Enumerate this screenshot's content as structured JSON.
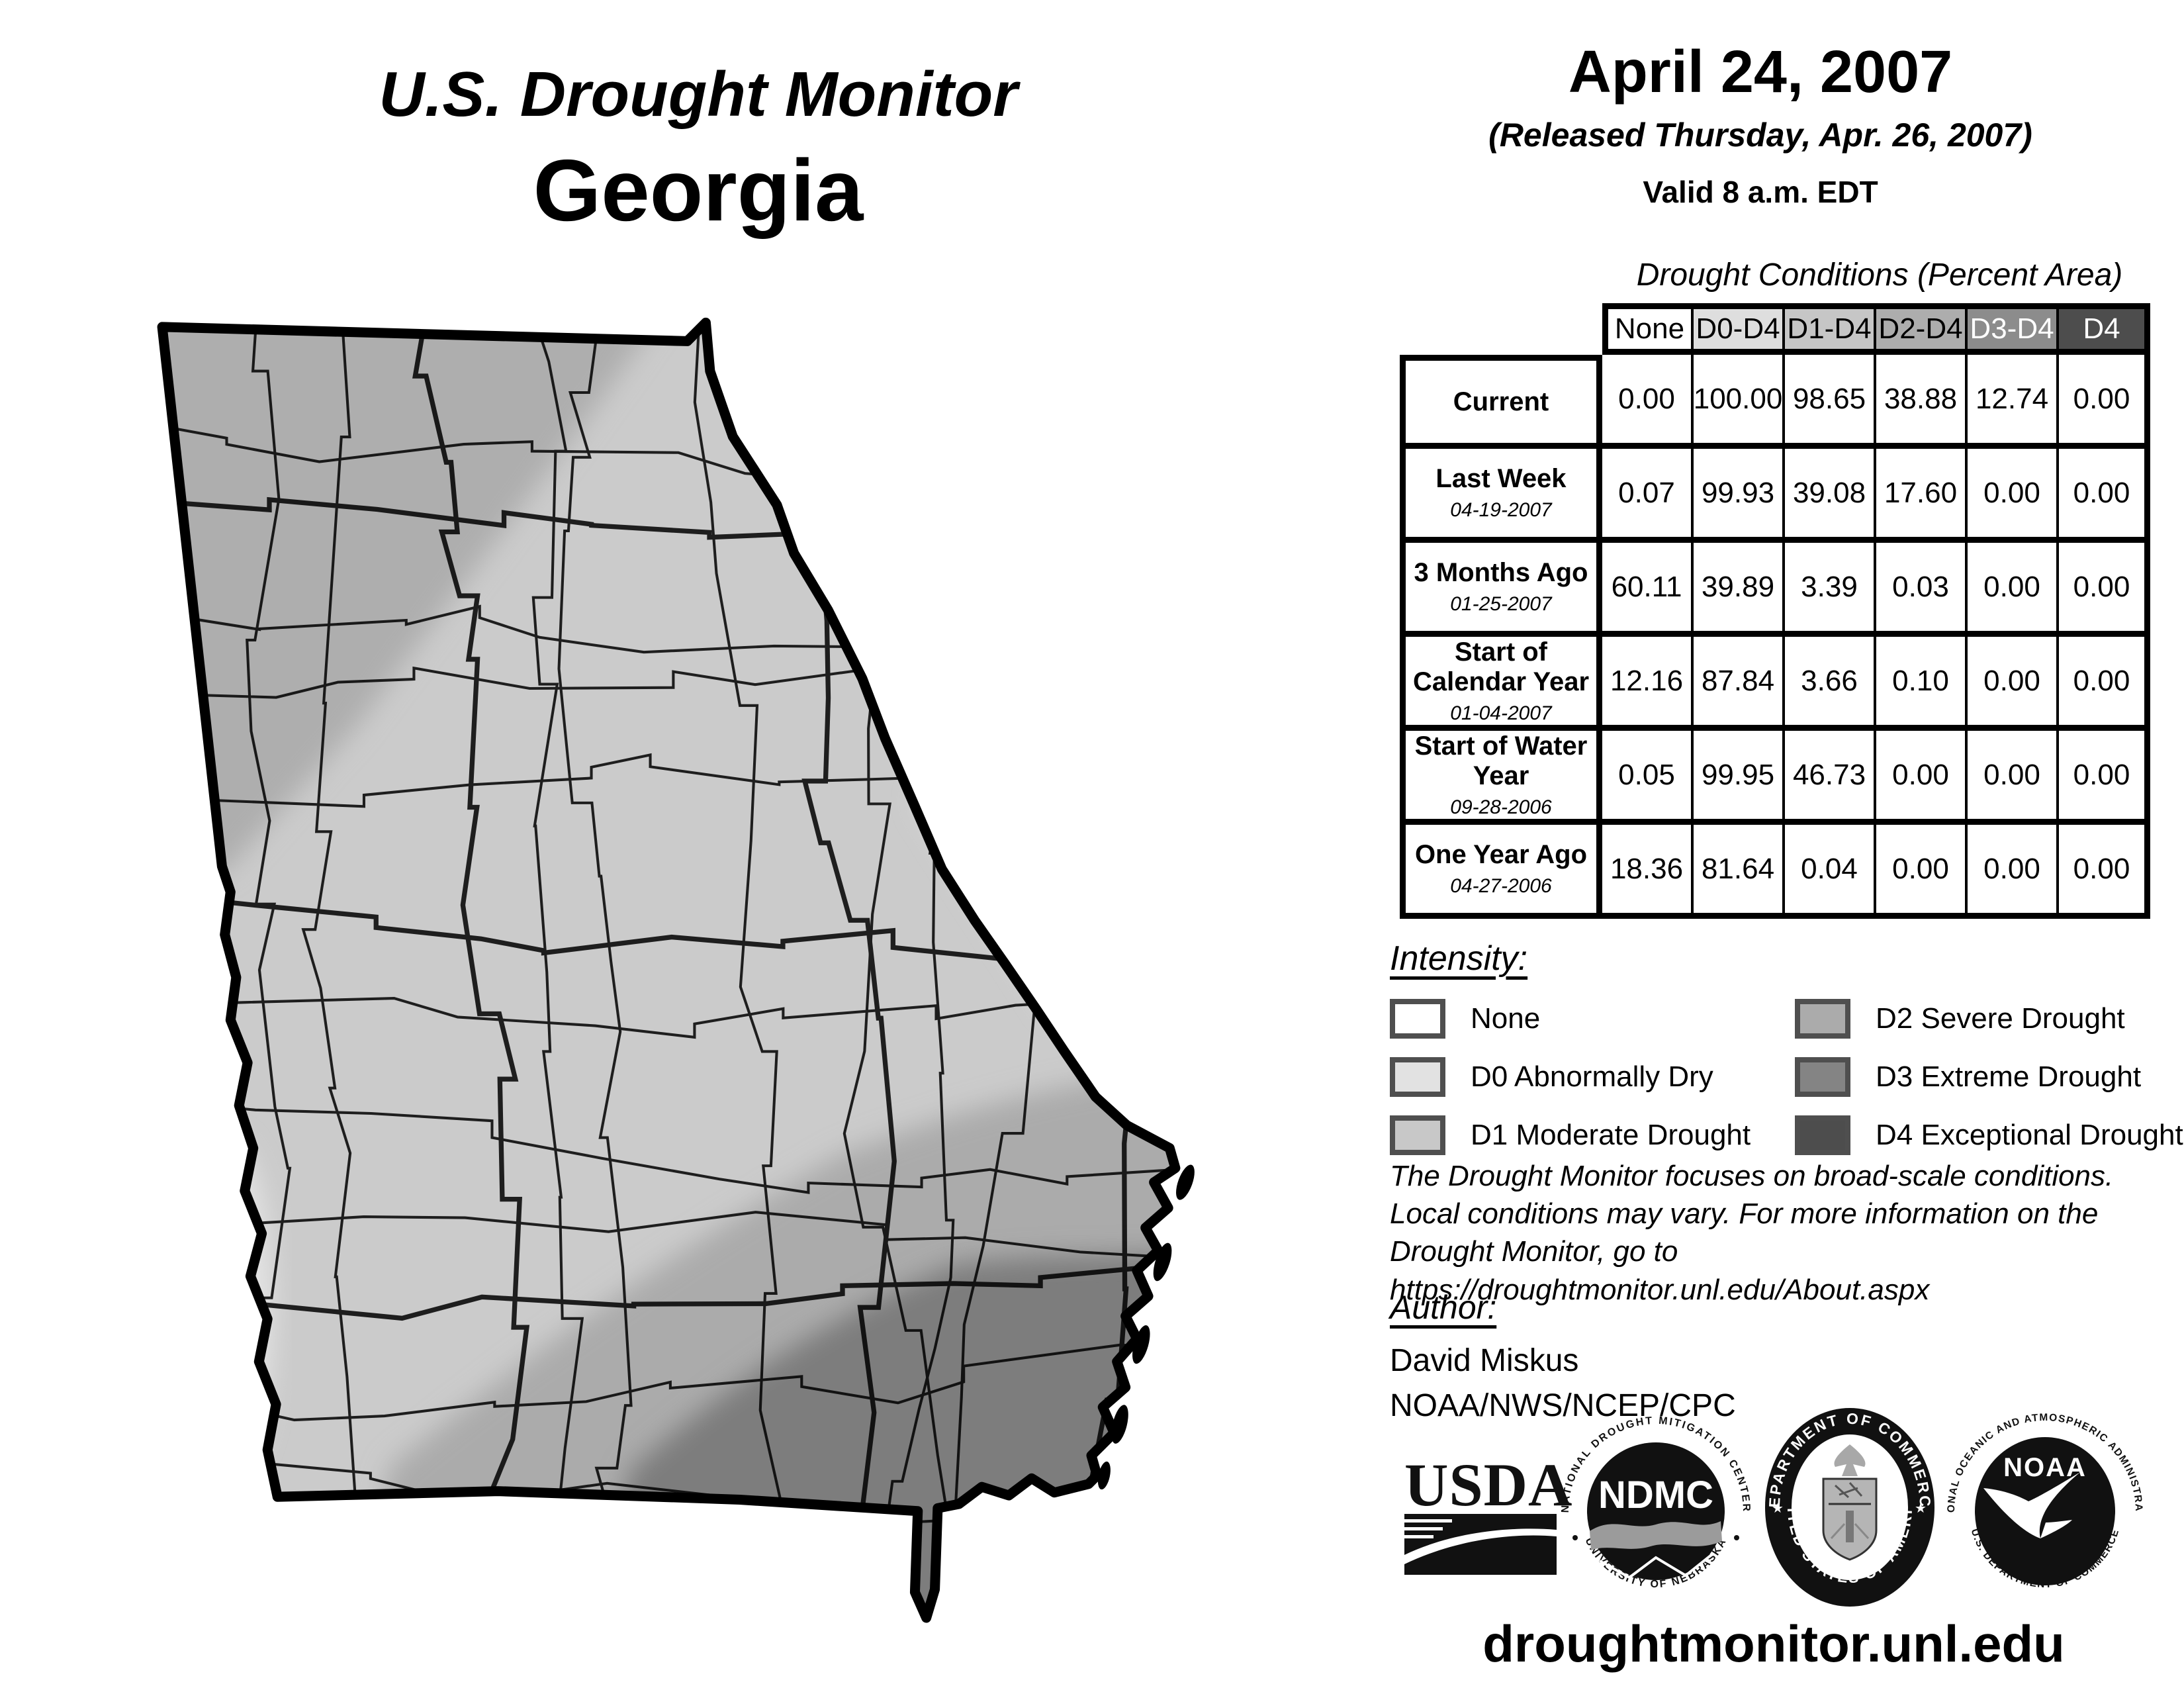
{
  "header": {
    "title_line1": "U.S. Drought Monitor",
    "title_line2": "Georgia",
    "date": "April 24, 2007",
    "released": "(Released Thursday, Apr. 26, 2007)",
    "valid": "Valid 8 a.m. EDT"
  },
  "table": {
    "title": "Drought Conditions (Percent Area)",
    "columns": [
      "None",
      "D0-D4",
      "D1-D4",
      "D2-D4",
      "D3-D4",
      "D4"
    ],
    "rows": [
      {
        "label": "Current",
        "date": "",
        "values": [
          "0.00",
          "100.00",
          "98.65",
          "38.88",
          "12.74",
          "0.00"
        ]
      },
      {
        "label": "Last Week",
        "date": "04-19-2007",
        "values": [
          "0.07",
          "99.93",
          "39.08",
          "17.60",
          "0.00",
          "0.00"
        ]
      },
      {
        "label": "3 Months Ago",
        "date": "01-25-2007",
        "values": [
          "60.11",
          "39.89",
          "3.39",
          "0.03",
          "0.00",
          "0.00"
        ]
      },
      {
        "label": "Start of Calendar Year",
        "date": "01-04-2007",
        "values": [
          "12.16",
          "87.84",
          "3.66",
          "0.10",
          "0.00",
          "0.00"
        ]
      },
      {
        "label": "Start of Water Year",
        "date": "09-28-2006",
        "values": [
          "0.05",
          "99.95",
          "46.73",
          "0.00",
          "0.00",
          "0.00"
        ]
      },
      {
        "label": "One Year Ago",
        "date": "04-27-2006",
        "values": [
          "18.36",
          "81.64",
          "0.04",
          "0.00",
          "0.00",
          "0.00"
        ]
      }
    ]
  },
  "chart_data": {
    "type": "table",
    "title": "Drought Conditions (Percent Area)",
    "categories": [
      "None",
      "D0-D4",
      "D1-D4",
      "D2-D4",
      "D3-D4",
      "D4"
    ],
    "series": [
      {
        "name": "Current",
        "values": [
          0.0,
          100.0,
          98.65,
          38.88,
          12.74,
          0.0
        ]
      },
      {
        "name": "Last Week 04-19-2007",
        "values": [
          0.07,
          99.93,
          39.08,
          17.6,
          0.0,
          0.0
        ]
      },
      {
        "name": "3 Months Ago 01-25-2007",
        "values": [
          60.11,
          39.89,
          3.39,
          0.03,
          0.0,
          0.0
        ]
      },
      {
        "name": "Start of Calendar Year 01-04-2007",
        "values": [
          12.16,
          87.84,
          3.66,
          0.1,
          0.0,
          0.0
        ]
      },
      {
        "name": "Start of Water Year 09-28-2006",
        "values": [
          0.05,
          99.95,
          46.73,
          0.0,
          0.0,
          0.0
        ]
      },
      {
        "name": "One Year Ago 04-27-2006",
        "values": [
          18.36,
          81.64,
          0.04,
          0.0,
          0.0,
          0.0
        ]
      }
    ]
  },
  "legend": {
    "title": "Intensity:",
    "items": [
      {
        "code": "none",
        "label": "None",
        "color": "#ffffff"
      },
      {
        "code": "d0",
        "label": "D0 Abnormally Dry",
        "color": "#e2e2e2"
      },
      {
        "code": "d1",
        "label": "D1 Moderate Drought",
        "color": "#c8c8c8"
      },
      {
        "code": "d2",
        "label": "D2 Severe Drought",
        "color": "#ababab"
      },
      {
        "code": "d3",
        "label": "D3 Extreme Drought",
        "color": "#848484"
      },
      {
        "code": "d4",
        "label": "D4 Exceptional Drought",
        "color": "#4d4d4d"
      }
    ]
  },
  "notes": {
    "line1": "The Drought Monitor focuses on broad-scale conditions.",
    "line2": "Local conditions may vary. For more information on the",
    "line3": "Drought Monitor, go to https://droughtmonitor.unl.edu/About.aspx"
  },
  "author": {
    "heading": "Author:",
    "name": "David Miskus",
    "org": "NOAA/NWS/NCEP/CPC"
  },
  "logos": {
    "usda": "USDA",
    "ndmc_top": "NATIONAL DROUGHT MITIGATION CENTER",
    "ndmc_center": "NDMC",
    "ndmc_bottom": "UNIVERSITY OF NEBRASKA",
    "doc_top": "DEPARTMENT OF COMMERCE",
    "doc_bottom": "UNITED STATES OF AMERICA",
    "noaa_top": "NATIONAL OCEANIC AND ATMOSPHERIC ADMINISTRATION",
    "noaa_center": "NOAA",
    "noaa_bottom": "U.S. DEPARTMENT OF COMMERCE"
  },
  "footer": {
    "url": "droughtmonitor.unl.edu"
  },
  "map": {
    "region": "Georgia",
    "band_colors": {
      "d0": "#e2e2e2",
      "d1": "#cbcbcb",
      "d2": "#ababab",
      "d3": "#7d7d7d"
    }
  }
}
